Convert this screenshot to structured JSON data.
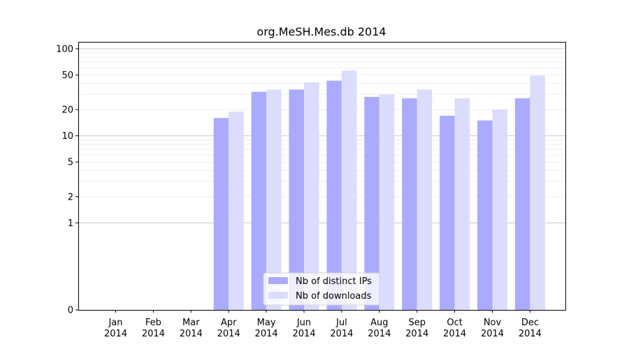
{
  "chart_data": {
    "type": "bar",
    "title": "org.MeSH.Mes.db 2014",
    "xlabel": "",
    "ylabel": "",
    "y_scale": "symlog",
    "ylim": [
      0,
      120
    ],
    "grid": true,
    "legend_placement": "bottom-center",
    "categories": [
      {
        "month": "Jan",
        "year": "2014"
      },
      {
        "month": "Feb",
        "year": "2014"
      },
      {
        "month": "Mar",
        "year": "2014"
      },
      {
        "month": "Apr",
        "year": "2014"
      },
      {
        "month": "May",
        "year": "2014"
      },
      {
        "month": "Jun",
        "year": "2014"
      },
      {
        "month": "Jul",
        "year": "2014"
      },
      {
        "month": "Aug",
        "year": "2014"
      },
      {
        "month": "Sep",
        "year": "2014"
      },
      {
        "month": "Oct",
        "year": "2014"
      },
      {
        "month": "Nov",
        "year": "2014"
      },
      {
        "month": "Dec",
        "year": "2014"
      }
    ],
    "y_ticks": [
      {
        "value": 0,
        "label": "0"
      },
      {
        "value": 1,
        "label": "1"
      },
      {
        "value": 2,
        "label": "2"
      },
      {
        "value": 5,
        "label": "5"
      },
      {
        "value": 10,
        "label": "10"
      },
      {
        "value": 20,
        "label": "20"
      },
      {
        "value": 50,
        "label": "50"
      },
      {
        "value": 100,
        "label": "100"
      }
    ],
    "series": [
      {
        "name": "Nb of distinct IPs",
        "color": "#aaaaff",
        "values": [
          0,
          0,
          0,
          16,
          32,
          34,
          43,
          28,
          27,
          17,
          15,
          27
        ]
      },
      {
        "name": "Nb of downloads",
        "color": "#dcdcff",
        "values": [
          0,
          0,
          0,
          19,
          34,
          41,
          56,
          30,
          34,
          27,
          20,
          49
        ]
      }
    ]
  }
}
